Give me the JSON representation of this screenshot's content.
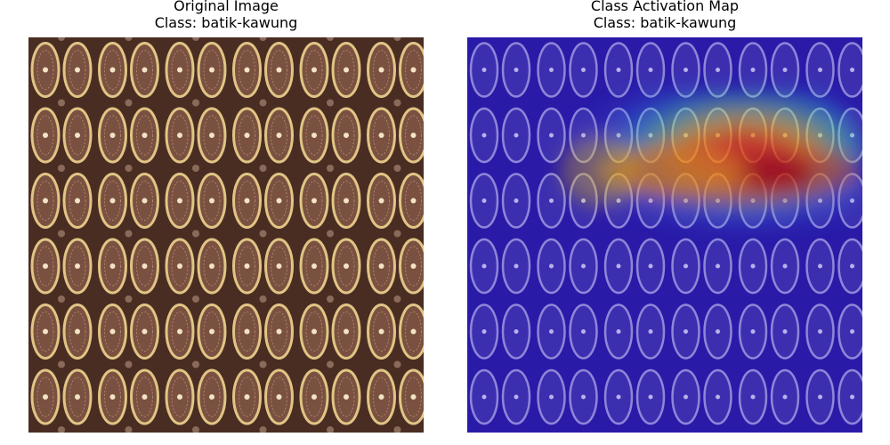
{
  "panels": [
    {
      "title_line1": "Original Image",
      "title_line2": "Class: batik-kawung"
    },
    {
      "title_line1": "Class Activation Map",
      "title_line2": "Class: batik-kawung"
    }
  ],
  "colors": {
    "fabric_background": "#4a2d22",
    "motif_ring": "#e0c585",
    "motif_fill": "#7a5140",
    "overlay_tint": "#2a1aa8",
    "heat_hot": "#c40000",
    "heat_warm": "#ffd200",
    "heat_mid": "#3de0a0"
  }
}
